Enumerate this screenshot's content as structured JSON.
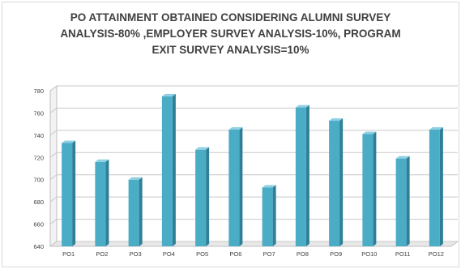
{
  "chart_data": {
    "type": "bar",
    "title_lines": [
      "PO ATTAINMENT OBTAINED CONSIDERING ALUMNI SURVEY",
      "ANALYSIS-80% ,EMPLOYER SURVEY ANALYSIS-10%, PROGRAM",
      "EXIT SURVEY ANALYSIS=10%"
    ],
    "categories": [
      "PO1",
      "PO2",
      "PO3",
      "PO4",
      "PO5",
      "PO6",
      "PO7",
      "PO8",
      "PO9",
      "PO10",
      "PO11",
      "PO12"
    ],
    "values": [
      733,
      716,
      700,
      775,
      727,
      745,
      693,
      765,
      753,
      741,
      719,
      745
    ],
    "ylim": [
      640,
      780
    ],
    "yticks": [
      640,
      660,
      680,
      700,
      720,
      740,
      760,
      780
    ],
    "xlabel": "",
    "ylabel": "",
    "grid": true,
    "colors": {
      "bar_front": "#4bacc6",
      "bar_side": "#2e7f97",
      "bar_top": "#8fd0e2",
      "grid": "#c9c9c9",
      "axis_text": "#404040"
    }
  }
}
